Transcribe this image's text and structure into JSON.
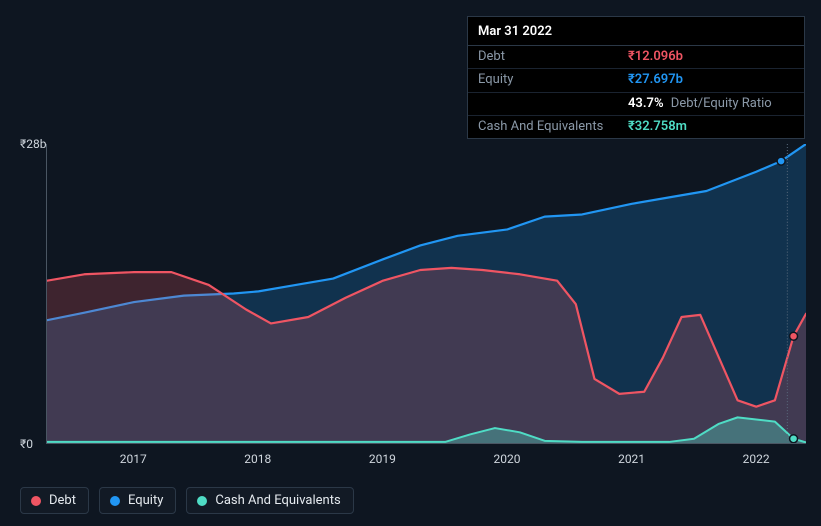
{
  "tooltip": {
    "date": "Mar 31 2022",
    "rows": [
      {
        "label": "Debt",
        "value": "₹12.096b",
        "color": "#ef5563"
      },
      {
        "label": "Equity",
        "value": "₹27.697b",
        "color": "#2196f3"
      },
      {
        "label": "",
        "value": "43.7%",
        "sub": "Debt/Equity Ratio",
        "color": "#ffffff"
      },
      {
        "label": "Cash And Equivalents",
        "value": "₹32.758m",
        "color": "#4fdcc5"
      }
    ]
  },
  "chart": {
    "type": "area",
    "background": "#0e1621",
    "grid_color": "#4a5663",
    "ylim": [
      0,
      28
    ],
    "yticks": [
      {
        "v": 0,
        "label": "₹0"
      },
      {
        "v": 28,
        "label": "₹28b"
      }
    ],
    "x_range": [
      2016.3,
      2022.4
    ],
    "xticks": [
      2017,
      2018,
      2019,
      2020,
      2021,
      2022
    ],
    "vertical_marker": 2022.25,
    "series": [
      {
        "name": "Equity",
        "color": "#2196f3",
        "fill_opacity": 0.22,
        "line_width": 2.2,
        "points": [
          [
            2016.3,
            11.5
          ],
          [
            2016.6,
            12.2
          ],
          [
            2017.0,
            13.2
          ],
          [
            2017.4,
            13.8
          ],
          [
            2017.8,
            14.0
          ],
          [
            2018.0,
            14.2
          ],
          [
            2018.3,
            14.8
          ],
          [
            2018.6,
            15.4
          ],
          [
            2019.0,
            17.2
          ],
          [
            2019.3,
            18.5
          ],
          [
            2019.6,
            19.4
          ],
          [
            2020.0,
            20.0
          ],
          [
            2020.3,
            21.2
          ],
          [
            2020.6,
            21.4
          ],
          [
            2021.0,
            22.4
          ],
          [
            2021.4,
            23.2
          ],
          [
            2021.6,
            23.6
          ],
          [
            2022.0,
            25.4
          ],
          [
            2022.2,
            26.4
          ],
          [
            2022.4,
            28.0
          ]
        ]
      },
      {
        "name": "Debt",
        "color": "#ef5563",
        "fill_opacity": 0.22,
        "line_width": 2.2,
        "points": [
          [
            2016.3,
            15.2
          ],
          [
            2016.6,
            15.8
          ],
          [
            2017.0,
            16.0
          ],
          [
            2017.3,
            16.0
          ],
          [
            2017.6,
            14.8
          ],
          [
            2017.9,
            12.5
          ],
          [
            2018.1,
            11.2
          ],
          [
            2018.4,
            11.8
          ],
          [
            2018.7,
            13.6
          ],
          [
            2019.0,
            15.2
          ],
          [
            2019.3,
            16.2
          ],
          [
            2019.55,
            16.4
          ],
          [
            2019.8,
            16.2
          ],
          [
            2020.1,
            15.8
          ],
          [
            2020.4,
            15.2
          ],
          [
            2020.55,
            13.0
          ],
          [
            2020.7,
            6.0
          ],
          [
            2020.9,
            4.6
          ],
          [
            2021.1,
            4.8
          ],
          [
            2021.25,
            8.0
          ],
          [
            2021.4,
            11.8
          ],
          [
            2021.55,
            12.0
          ],
          [
            2021.7,
            8.0
          ],
          [
            2021.85,
            4.0
          ],
          [
            2022.0,
            3.4
          ],
          [
            2022.15,
            4.0
          ],
          [
            2022.3,
            10.0
          ],
          [
            2022.4,
            12.1
          ]
        ]
      },
      {
        "name": "Cash And Equivalents",
        "color": "#4fdcc5",
        "fill_opacity": 0.35,
        "line_width": 2.0,
        "points": [
          [
            2016.3,
            0.1
          ],
          [
            2017.0,
            0.1
          ],
          [
            2018.0,
            0.1
          ],
          [
            2019.0,
            0.1
          ],
          [
            2019.5,
            0.1
          ],
          [
            2019.7,
            0.8
          ],
          [
            2019.9,
            1.4
          ],
          [
            2020.1,
            1.0
          ],
          [
            2020.3,
            0.2
          ],
          [
            2020.6,
            0.1
          ],
          [
            2021.3,
            0.1
          ],
          [
            2021.5,
            0.4
          ],
          [
            2021.7,
            1.8
          ],
          [
            2021.85,
            2.4
          ],
          [
            2022.0,
            2.2
          ],
          [
            2022.15,
            2.0
          ],
          [
            2022.3,
            0.4
          ],
          [
            2022.4,
            0.05
          ]
        ]
      }
    ],
    "legend": [
      {
        "label": "Debt",
        "color": "#ef5563"
      },
      {
        "label": "Equity",
        "color": "#2196f3"
      },
      {
        "label": "Cash And Equivalents",
        "color": "#4fdcc5"
      }
    ]
  }
}
